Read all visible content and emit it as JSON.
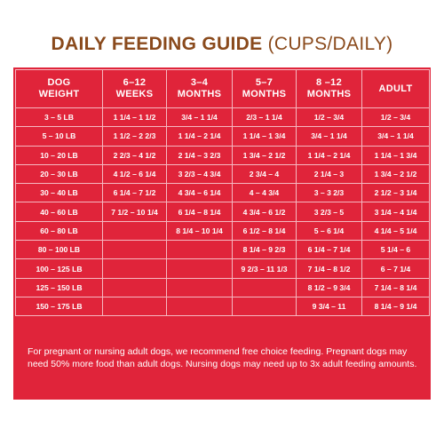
{
  "title": {
    "bold": "DAILY FEEDING GUIDE",
    "light": "(CUPS/DAILY)"
  },
  "table": {
    "headers": [
      [
        "DOG",
        "WEIGHT"
      ],
      [
        "6–12",
        "WEEKS"
      ],
      [
        "3–4",
        "MONTHS"
      ],
      [
        "5–7",
        "MONTHS"
      ],
      [
        "8 –12",
        "MONTHS"
      ],
      [
        "ADULT"
      ]
    ],
    "rows": [
      [
        "3 – 5 LB",
        "1 1/4 – 1 1/2",
        "3/4 – 1 1/4",
        "2/3 – 1 1/4",
        "1/2 – 3/4",
        "1/2 – 3/4"
      ],
      [
        "5 – 10 LB",
        "1 1/2 – 2 2/3",
        "1 1/4 – 2 1/4",
        "1 1/4 – 1 3/4",
        "3/4 – 1 1/4",
        "3/4 – 1 1/4"
      ],
      [
        "10 – 20 LB",
        "2 2/3 – 4 1/2",
        "2 1/4 – 3 2/3",
        "1 3/4 – 2 1/2",
        "1 1/4 – 2 1/4",
        "1 1/4 – 1 3/4"
      ],
      [
        "20 – 30 LB",
        "4 1/2 – 6 1/4",
        "3 2/3 – 4 3/4",
        "2 3/4 – 4",
        "2 1/4 – 3",
        "1 3/4 – 2 1/2"
      ],
      [
        "30 – 40 LB",
        "6 1/4 – 7 1/2",
        "4 3/4 – 6 1/4",
        "4 – 4 3/4",
        "3 – 3 2/3",
        "2 1/2 – 3 1/4"
      ],
      [
        "40 – 60 LB",
        "7 1/2 – 10 1/4",
        "6 1/4 – 8 1/4",
        "4 3/4 – 6 1/2",
        "3 2/3 – 5",
        "3 1/4 – 4 1/4"
      ],
      [
        "60 – 80 LB",
        "",
        "8 1/4 – 10 1/4",
        "6 1/2 – 8 1/4",
        "5 – 6 1/4",
        "4 1/4 – 5 1/4"
      ],
      [
        "80 – 100 LB",
        "",
        "",
        "8 1/4 – 9 2/3",
        "6 1/4 – 7 1/4",
        "5 1/4 – 6"
      ],
      [
        "100 – 125 LB",
        "",
        "",
        "9 2/3 – 11 1/3",
        "7 1/4 – 8 1/2",
        "6 – 7 1/4"
      ],
      [
        "125 – 150 LB",
        "",
        "",
        "",
        "8 1/2 – 9 3/4",
        "7 1/4 – 8 1/4"
      ],
      [
        "150 – 175 LB",
        "",
        "",
        "",
        "9 3/4 – 11",
        "8 1/4 – 9 1/4"
      ]
    ]
  },
  "footnote": "For pregnant or nursing adult dogs, we recommend free choice feeding. Pregnant dogs may need 50% more food than adult dogs. Nursing dogs may need up to 3x adult feeding amounts.",
  "colors": {
    "panel": "#e0243a",
    "title": "#8a4a1c",
    "grid": "#f6b7c0",
    "text": "#ffffff"
  }
}
